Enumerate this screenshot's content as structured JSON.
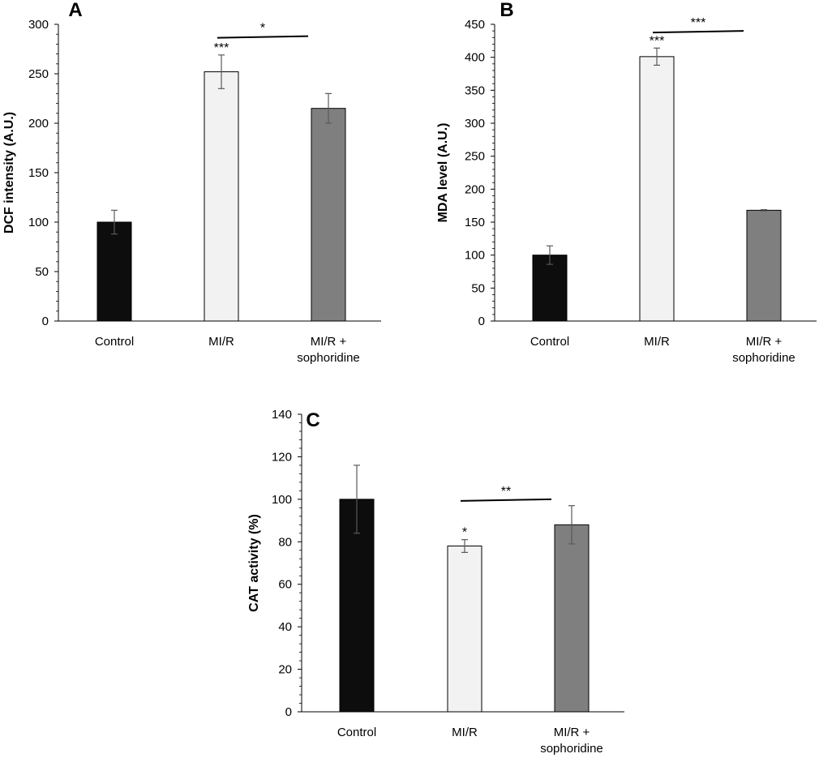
{
  "chart_data": [
    {
      "type": "bar",
      "panel": "A",
      "categories": [
        "Control",
        "MI/R",
        "MI/R + sophoridine"
      ],
      "values": [
        100,
        252,
        215
      ],
      "errors": [
        12,
        17,
        15
      ],
      "colors": [
        "#0d0d0d",
        "#f2f2f2",
        "#7f7f7f"
      ],
      "title": "",
      "xlabel": "",
      "ylabel": "DCF intensity (A.U.)",
      "ylim": [
        0,
        300
      ],
      "ytick_step": 50,
      "significance": [
        {
          "category": "MI/R",
          "label": "***"
        },
        {
          "from": "MI/R",
          "to": "MI/R + sophoridine",
          "label": "*",
          "level": 288
        }
      ]
    },
    {
      "type": "bar",
      "panel": "B",
      "categories": [
        "Control",
        "MI/R",
        "MI/R + sophoridine"
      ],
      "values": [
        100,
        401,
        168
      ],
      "errors": [
        14,
        13,
        1
      ],
      "colors": [
        "#0d0d0d",
        "#f2f2f2",
        "#7f7f7f"
      ],
      "title": "",
      "xlabel": "",
      "ylabel": "MDA level (A.U.)",
      "ylim": [
        0,
        450
      ],
      "ytick_step": 50,
      "significance": [
        {
          "category": "MI/R",
          "label": "***"
        },
        {
          "from": "MI/R",
          "to": "MI/R + sophoridine",
          "label": "***",
          "level": 440
        }
      ]
    },
    {
      "type": "bar",
      "panel": "C",
      "categories": [
        "Control",
        "MI/R",
        "MI/R + sophoridine"
      ],
      "values": [
        100,
        78,
        88
      ],
      "errors": [
        16,
        3,
        9
      ],
      "colors": [
        "#0d0d0d",
        "#f2f2f2",
        "#7f7f7f"
      ],
      "title": "",
      "xlabel": "",
      "ylabel": "CAT activity (%)",
      "ylim": [
        0,
        140
      ],
      "ytick_step": 20,
      "significance": [
        {
          "category": "MI/R",
          "label": "*"
        },
        {
          "from": "MI/R",
          "to": "MI/R + sophoridine",
          "label": "**",
          "level": 100
        }
      ]
    }
  ]
}
